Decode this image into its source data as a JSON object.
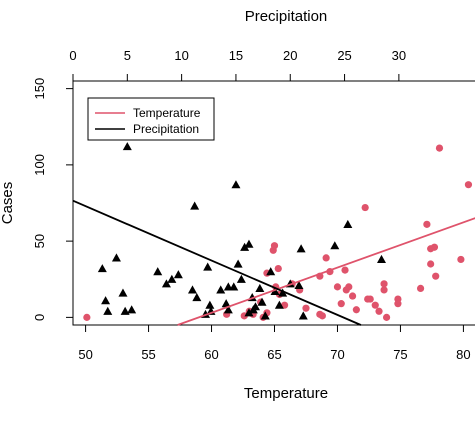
{
  "chart_data": {
    "type": "scatter",
    "xlabel": "Temperature",
    "ylabel": "Cases",
    "x2label": "Precipitation",
    "xlim": [
      49,
      81
    ],
    "x2lim": [
      0,
      37.1
    ],
    "ylim": [
      -5,
      155
    ],
    "xticks": [
      50,
      55,
      60,
      65,
      70,
      75,
      80
    ],
    "x2ticks": [
      0,
      5,
      10,
      15,
      20,
      25,
      30
    ],
    "yticks": [
      0,
      50,
      100,
      150
    ],
    "legend_position": "top-left",
    "series": [
      {
        "name": "Temperature",
        "axis": "bottom",
        "color": "#df536b",
        "marker": "circle",
        "points": [
          [
            50.1,
            0
          ],
          [
            61.2,
            2
          ],
          [
            62.6,
            1
          ],
          [
            63.0,
            4
          ],
          [
            63.3,
            2
          ],
          [
            63.9,
            10
          ],
          [
            64.1,
            0
          ],
          [
            64.4,
            29
          ],
          [
            64.4,
            3
          ],
          [
            64.9,
            44
          ],
          [
            65.0,
            47
          ],
          [
            65.1,
            20
          ],
          [
            65.3,
            32
          ],
          [
            65.4,
            15
          ],
          [
            65.8,
            8
          ],
          [
            66.4,
            22
          ],
          [
            67.0,
            18
          ],
          [
            67.5,
            6
          ],
          [
            68.6,
            27
          ],
          [
            68.6,
            2
          ],
          [
            68.8,
            1
          ],
          [
            69.1,
            39
          ],
          [
            69.4,
            30
          ],
          [
            70.0,
            20
          ],
          [
            70.3,
            9
          ],
          [
            70.6,
            31
          ],
          [
            70.7,
            18
          ],
          [
            70.9,
            20
          ],
          [
            71.2,
            14
          ],
          [
            71.5,
            5
          ],
          [
            72.2,
            72
          ],
          [
            72.4,
            12
          ],
          [
            72.6,
            12
          ],
          [
            73.0,
            8
          ],
          [
            73.3,
            4
          ],
          [
            73.7,
            22
          ],
          [
            73.7,
            18
          ],
          [
            73.9,
            0
          ],
          [
            74.8,
            12
          ],
          [
            74.8,
            9
          ],
          [
            76.6,
            19
          ],
          [
            77.1,
            61
          ],
          [
            77.4,
            35
          ],
          [
            77.4,
            45
          ],
          [
            77.7,
            46
          ],
          [
            77.8,
            27
          ],
          [
            78.1,
            111
          ],
          [
            79.8,
            38
          ],
          [
            80.4,
            87
          ]
        ]
      },
      {
        "name": "Precipitation",
        "axis": "top",
        "color": "#000000",
        "marker": "triangle",
        "points": [
          [
            2.7,
            32
          ],
          [
            3.0,
            11
          ],
          [
            3.2,
            4
          ],
          [
            4.0,
            39
          ],
          [
            4.6,
            16
          ],
          [
            4.8,
            4
          ],
          [
            5.0,
            112
          ],
          [
            5.4,
            5
          ],
          [
            7.8,
            30
          ],
          [
            8.6,
            22
          ],
          [
            9.1,
            25
          ],
          [
            9.7,
            28
          ],
          [
            11.0,
            18
          ],
          [
            11.2,
            73
          ],
          [
            11.4,
            13
          ],
          [
            12.4,
            33
          ],
          [
            12.2,
            2
          ],
          [
            12.6,
            8
          ],
          [
            12.7,
            4
          ],
          [
            13.6,
            18
          ],
          [
            14.1,
            9
          ],
          [
            14.3,
            20
          ],
          [
            14.3,
            5
          ],
          [
            14.8,
            20
          ],
          [
            15.0,
            87
          ],
          [
            15.2,
            35
          ],
          [
            15.5,
            25
          ],
          [
            15.8,
            46
          ],
          [
            16.2,
            48
          ],
          [
            16.2,
            3
          ],
          [
            16.5,
            13
          ],
          [
            16.6,
            5
          ],
          [
            16.8,
            7
          ],
          [
            17.2,
            19
          ],
          [
            17.4,
            10
          ],
          [
            17.7,
            1
          ],
          [
            18.2,
            30
          ],
          [
            18.6,
            17
          ],
          [
            19.0,
            8
          ],
          [
            19.3,
            16
          ],
          [
            20.0,
            22
          ],
          [
            20.8,
            21
          ],
          [
            21.0,
            45
          ],
          [
            21.2,
            1
          ],
          [
            24.1,
            47
          ],
          [
            25.3,
            61
          ],
          [
            28.4,
            38
          ]
        ]
      }
    ],
    "fit_lines": [
      {
        "name": "Temperature",
        "axis": "bottom",
        "color": "#df536b",
        "x": [
          57.3,
          81
        ],
        "y": [
          -5,
          65.3
        ]
      },
      {
        "name": "Precipitation",
        "axis": "top",
        "color": "#000000",
        "x": [
          0,
          26.5
        ],
        "y": [
          76.5,
          -5
        ]
      }
    ]
  }
}
